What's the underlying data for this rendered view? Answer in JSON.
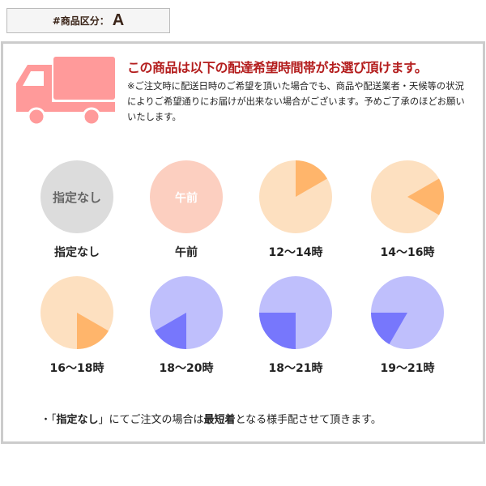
{
  "header": {
    "key": "#商品区分：",
    "value": "A"
  },
  "notice": {
    "title": "この商品は以下の配達希望時間帯がお選び頂けます。",
    "description": "※ご注文時に配送日時のご希望を頂いた場合でも、商品や配送業者・天候等の状況によりご希望通りにお届けが出来ない場合がございます。予めご了承のほどお願いいたします。"
  },
  "icons": {
    "truck": "truck-icon"
  },
  "colors": {
    "title": "#b41e1e",
    "truck": "#ff9a9a",
    "none": "#dcdcdc",
    "morning": "#fccfc0",
    "day_base": "#fde0c0",
    "day_slice": "#ffb56b",
    "night_base": "#bfbffc",
    "night_slice": "#7777fc"
  },
  "slots": [
    {
      "label": "指定なし",
      "inner": "指定なし",
      "type": "none"
    },
    {
      "label": "午前",
      "inner": "午前",
      "type": "morning"
    },
    {
      "label": "12〜14時",
      "type": "day",
      "from": 12,
      "to": 14
    },
    {
      "label": "14〜16時",
      "type": "day",
      "from": 14,
      "to": 16
    },
    {
      "label": "16〜18時",
      "type": "day",
      "from": 16,
      "to": 18
    },
    {
      "label": "18〜20時",
      "type": "night",
      "from": 18,
      "to": 20
    },
    {
      "label": "18〜21時",
      "type": "night",
      "from": 18,
      "to": 21
    },
    {
      "label": "19〜21時",
      "type": "night",
      "from": 19,
      "to": 21
    }
  ],
  "footnote": {
    "pre": "・「",
    "bold1": "指定なし",
    "mid": "」にてご注文の場合は",
    "bold2": "最短着",
    "post": "となる様手配させて頂きます。"
  }
}
